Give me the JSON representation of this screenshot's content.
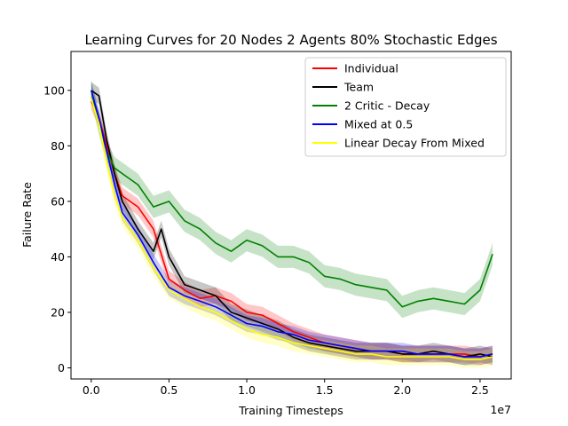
{
  "chart_data": {
    "type": "line",
    "title": "Learning Curves for 20 Nodes 2 Agents 80% Stochastic Edges",
    "xlabel": "Training Timesteps",
    "ylabel": "Failure Rate",
    "x_offset_label": "1e7",
    "xlim": [
      -0.13,
      2.7
    ],
    "ylim": [
      -4,
      114
    ],
    "x_scale_note": "x values in units of 1e7 timesteps",
    "x_ticks": [
      0.0,
      0.5,
      1.0,
      1.5,
      2.0,
      2.5
    ],
    "x_tick_labels": [
      "0.0",
      "0.5",
      "1.0",
      "1.5",
      "2.0",
      "2.5"
    ],
    "y_ticks": [
      0,
      20,
      40,
      60,
      80,
      100
    ],
    "y_tick_labels": [
      "0",
      "20",
      "40",
      "60",
      "80",
      "100"
    ],
    "grid": false,
    "legend_position": "top-right",
    "series": [
      {
        "name": "Individual",
        "color": "#ff0000",
        "band": 3,
        "x": [
          0.0,
          0.05,
          0.1,
          0.15,
          0.2,
          0.3,
          0.4,
          0.5,
          0.6,
          0.7,
          0.8,
          0.9,
          1.0,
          1.1,
          1.2,
          1.3,
          1.4,
          1.5,
          1.6,
          1.7,
          1.8,
          1.9,
          2.0,
          2.1,
          2.2,
          2.3,
          2.4,
          2.5,
          2.58
        ],
        "y": [
          96,
          90,
          80,
          70,
          62,
          58,
          50,
          32,
          28,
          25,
          26,
          24,
          20,
          19,
          16,
          13,
          11,
          9,
          8,
          7,
          6,
          6,
          5,
          5,
          5,
          5,
          5,
          4,
          5
        ]
      },
      {
        "name": "Team",
        "color": "#000000",
        "band": 3,
        "x": [
          0.0,
          0.05,
          0.1,
          0.15,
          0.2,
          0.3,
          0.4,
          0.45,
          0.5,
          0.6,
          0.7,
          0.8,
          0.9,
          1.0,
          1.1,
          1.2,
          1.3,
          1.4,
          1.5,
          1.6,
          1.7,
          1.8,
          1.9,
          2.0,
          2.1,
          2.2,
          2.3,
          2.4,
          2.5,
          2.58
        ],
        "y": [
          100,
          98,
          82,
          70,
          60,
          50,
          42,
          50,
          40,
          30,
          28,
          26,
          20,
          18,
          16,
          14,
          11,
          9,
          8,
          7,
          6,
          6,
          6,
          5,
          5,
          6,
          5,
          4,
          5,
          4
        ]
      },
      {
        "name": "2 Critic - Decay",
        "color": "#008000",
        "band": 4,
        "x": [
          0.0,
          0.05,
          0.1,
          0.15,
          0.2,
          0.3,
          0.4,
          0.5,
          0.6,
          0.7,
          0.8,
          0.9,
          1.0,
          1.1,
          1.2,
          1.3,
          1.4,
          1.5,
          1.6,
          1.7,
          1.8,
          1.9,
          2.0,
          2.1,
          2.2,
          2.3,
          2.4,
          2.5,
          2.55,
          2.58
        ],
        "y": [
          100,
          88,
          78,
          72,
          70,
          66,
          58,
          60,
          53,
          50,
          45,
          42,
          46,
          44,
          40,
          40,
          38,
          33,
          32,
          30,
          29,
          28,
          22,
          24,
          25,
          24,
          23,
          28,
          36,
          41
        ]
      },
      {
        "name": "Mixed at 0.5",
        "color": "#0000ff",
        "band": 3,
        "x": [
          0.0,
          0.05,
          0.1,
          0.15,
          0.2,
          0.3,
          0.4,
          0.5,
          0.6,
          0.7,
          0.8,
          0.9,
          1.0,
          1.1,
          1.2,
          1.3,
          1.4,
          1.5,
          1.6,
          1.7,
          1.8,
          1.9,
          2.0,
          2.1,
          2.2,
          2.3,
          2.4,
          2.5,
          2.58
        ],
        "y": [
          100,
          90,
          78,
          66,
          56,
          48,
          38,
          29,
          26,
          24,
          22,
          19,
          16,
          15,
          13,
          12,
          10,
          9,
          8,
          7,
          6,
          6,
          6,
          5,
          5,
          5,
          4,
          4,
          5
        ]
      },
      {
        "name": "Linear Decay From Mixed",
        "color": "#ffff00",
        "band": 3,
        "x": [
          0.0,
          0.05,
          0.1,
          0.15,
          0.2,
          0.3,
          0.4,
          0.5,
          0.6,
          0.7,
          0.8,
          0.9,
          1.0,
          1.1,
          1.2,
          1.3,
          1.4,
          1.5,
          1.6,
          1.7,
          1.8,
          1.9,
          2.0,
          2.1,
          2.2,
          2.3,
          2.4,
          2.5,
          2.58
        ],
        "y": [
          97,
          88,
          74,
          62,
          54,
          46,
          36,
          28,
          25,
          22,
          20,
          17,
          14,
          12,
          11,
          9,
          8,
          7,
          6,
          5,
          5,
          4,
          4,
          4,
          4,
          4,
          3,
          3,
          4
        ]
      }
    ]
  }
}
